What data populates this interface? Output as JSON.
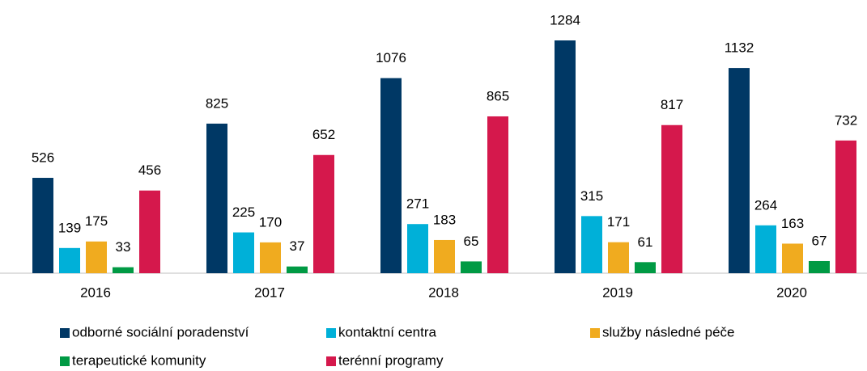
{
  "chart_data": {
    "type": "bar",
    "categories": [
      "2016",
      "2017",
      "2018",
      "2019",
      "2020"
    ],
    "series": [
      {
        "name": "odborné sociální poradenství",
        "color": "#003865",
        "values": [
          526,
          825,
          1076,
          1284,
          1132
        ]
      },
      {
        "name": "kontaktní centra",
        "color": "#00b0d8",
        "values": [
          139,
          225,
          271,
          315,
          264
        ]
      },
      {
        "name": "služby následné péče",
        "color": "#f0ab1f",
        "values": [
          175,
          170,
          183,
          171,
          163
        ]
      },
      {
        "name": "terapeutické komunity",
        "color": "#009a44",
        "values": [
          33,
          37,
          65,
          61,
          67
        ]
      },
      {
        "name": "terénní programy",
        "color": "#d5184c",
        "values": [
          456,
          652,
          865,
          817,
          732
        ]
      }
    ],
    "legend": "bottom"
  }
}
